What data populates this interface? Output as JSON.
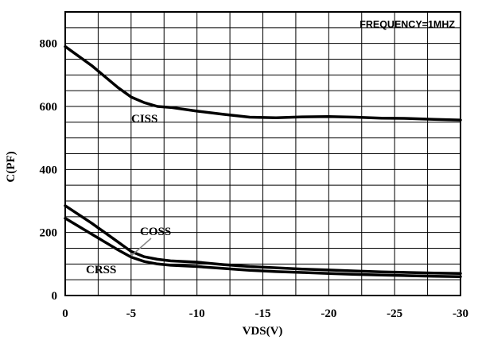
{
  "chart_data": {
    "type": "line",
    "annotation": "FREQUENCY=1MHZ",
    "xlabel": "VDS(V)",
    "ylabel": "C(PF)",
    "xlim": [
      0,
      -30
    ],
    "ylim": [
      0,
      900
    ],
    "x_ticks": [
      0,
      -5,
      -10,
      -15,
      -20,
      -25,
      -30
    ],
    "y_ticks": [
      0,
      200,
      400,
      600,
      800
    ],
    "grid": true,
    "series": [
      {
        "name": "CISS",
        "x": [
          0,
          -2,
          -4,
          -5,
          -6,
          -7,
          -8,
          -10,
          -12,
          -14,
          -16,
          -18,
          -20,
          -22,
          -24,
          -26,
          -28,
          -30
        ],
        "y": [
          790,
          730,
          660,
          630,
          612,
          600,
          597,
          585,
          575,
          566,
          564,
          567,
          568,
          566,
          563,
          562,
          559,
          557
        ]
      },
      {
        "name": "COSS",
        "x": [
          0,
          -2,
          -4,
          -5,
          -6,
          -7,
          -8,
          -10,
          -12,
          -14,
          -16,
          -18,
          -20,
          -22,
          -24,
          -26,
          -28,
          -30
        ],
        "y": [
          285,
          230,
          170,
          140,
          123,
          115,
          110,
          106,
          98,
          92,
          88,
          84,
          81,
          78,
          75,
          73,
          71,
          70
        ]
      },
      {
        "name": "CRSS",
        "x": [
          0,
          -2,
          -4,
          -5,
          -6,
          -7,
          -8,
          -10,
          -12,
          -14,
          -16,
          -18,
          -20,
          -22,
          -24,
          -26,
          -28,
          -30
        ],
        "y": [
          245,
          195,
          145,
          122,
          108,
          100,
          96,
          92,
          86,
          80,
          76,
          73,
          70,
          67,
          65,
          63,
          61,
          60
        ]
      }
    ]
  }
}
